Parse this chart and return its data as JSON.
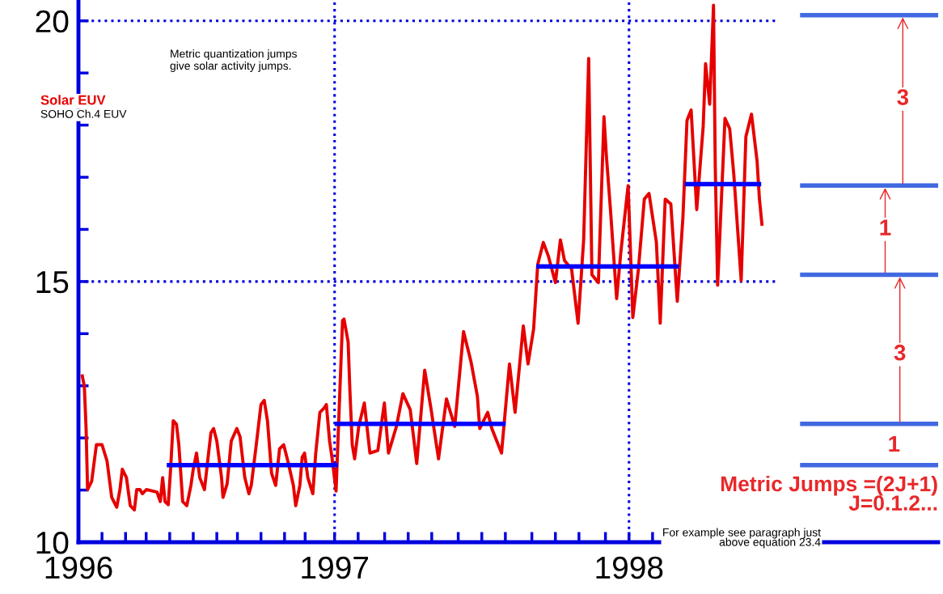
{
  "chart_data": {
    "type": "line",
    "ylabel": null,
    "series": [
      {
        "name": "Solar EUV",
        "color": "#e60000",
        "x": [
          1996.142,
          1996.15,
          1996.156,
          1996.161,
          1996.175,
          1996.191,
          1996.21,
          1996.227,
          1996.243,
          1996.26,
          1996.271,
          1996.279,
          1996.293,
          1996.306,
          1996.32,
          1996.328,
          1996.339,
          1996.347,
          1996.361,
          1996.383,
          1996.397,
          1996.408,
          1996.416,
          1996.424,
          1996.435,
          1996.443,
          1996.452,
          1996.463,
          1996.471,
          1996.484,
          1996.498,
          1996.512,
          1996.52,
          1996.531,
          1996.542,
          1996.558,
          1996.569,
          1996.58,
          1996.589,
          1996.6,
          1996.616,
          1996.621,
          1996.635,
          1996.649,
          1996.668,
          1996.679,
          1996.695,
          1996.709,
          1996.717,
          1996.734,
          1996.75,
          1996.761,
          1996.772,
          1996.786,
          1996.8,
          1996.813,
          1996.827,
          1996.841,
          1996.86,
          1996.868,
          1996.882,
          1996.89,
          1996.898,
          1996.909,
          1996.926,
          1996.936,
          1996.95,
          1996.964,
          1996.972,
          1996.983,
          1996.991,
          1997.005,
          1997.027,
          1997.032,
          1997.046,
          1997.052,
          1997.06,
          1997.068,
          1997.082,
          1997.101,
          1997.12,
          1997.147,
          1997.169,
          1997.183,
          1997.21,
          1997.232,
          1997.257,
          1997.279,
          1997.306,
          1997.328,
          1997.353,
          1997.38,
          1997.408,
          1997.438,
          1997.463,
          1997.485,
          1997.493,
          1997.52,
          1997.534,
          1997.567,
          1997.594,
          1997.613,
          1997.641,
          1997.657,
          1997.676,
          1997.69,
          1997.709,
          1997.726,
          1997.75,
          1997.767,
          1997.781,
          1997.805,
          1997.827,
          1997.846,
          1997.863,
          1997.874,
          1997.896,
          1997.915,
          1997.923,
          1997.937,
          1997.958,
          1997.972,
          1997.997,
          1998.013,
          1998.032,
          1998.052,
          1998.068,
          1998.093,
          1998.106,
          1998.123,
          1998.142,
          1998.164,
          1998.183,
          1998.197,
          1998.211,
          1998.23,
          1998.252,
          1998.26,
          1998.274,
          1998.287,
          1998.293,
          1998.301,
          1998.326,
          1998.342,
          1998.356,
          1998.381,
          1998.397,
          1998.416,
          1998.435,
          1998.443,
          1998.452
        ],
        "values": [
          13.22,
          12.99,
          12.18,
          11.01,
          11.17,
          11.87,
          11.87,
          11.56,
          10.86,
          10.67,
          11.01,
          11.4,
          11.24,
          10.7,
          10.62,
          11.01,
          11.01,
          10.93,
          11.01,
          10.98,
          10.96,
          10.78,
          11.24,
          10.78,
          10.72,
          11.4,
          12.33,
          12.26,
          11.87,
          10.78,
          10.7,
          11.09,
          11.4,
          11.71,
          11.24,
          11.01,
          11.56,
          12.1,
          12.18,
          11.94,
          11.24,
          10.86,
          11.12,
          11.94,
          12.18,
          12.02,
          11.24,
          10.93,
          11.09,
          11.87,
          12.64,
          12.72,
          12.33,
          11.32,
          11.09,
          11.79,
          11.87,
          11.56,
          11.09,
          10.7,
          11.09,
          11.63,
          11.71,
          11.24,
          10.93,
          11.71,
          12.49,
          12.57,
          12.64,
          11.94,
          11.63,
          10.98,
          14.25,
          14.28,
          13.84,
          12.91,
          11.87,
          11.6,
          12.22,
          12.67,
          11.71,
          11.76,
          12.67,
          11.71,
          12.22,
          12.85,
          12.54,
          11.51,
          13.3,
          12.54,
          11.6,
          12.75,
          12.22,
          14.04,
          13.47,
          12.8,
          12.18,
          12.49,
          12.18,
          11.71,
          13.42,
          12.49,
          14.15,
          13.42,
          14.09,
          15.33,
          15.75,
          15.49,
          14.98,
          15.8,
          15.4,
          15.24,
          14.2,
          15.8,
          19.28,
          15.13,
          14.98,
          18.16,
          17.42,
          16.38,
          14.67,
          15.55,
          16.84,
          14.31,
          15.24,
          16.58,
          16.69,
          15.75,
          14.2,
          16.58,
          16.49,
          14.62,
          16.22,
          18.09,
          18.29,
          16.38,
          17.98,
          19.18,
          18.4,
          20.3,
          17.2,
          14.93,
          18.13,
          17.93,
          17.05,
          15.02,
          17.78,
          18.21,
          17.31,
          16.58,
          16.07
        ]
      },
      {
        "color": "#0000ff",
        "x": [
          1996.43,
          1997.011,
          null,
          1997.0,
          1997.581,
          null,
          1997.685,
          1998.17,
          null,
          1998.189,
          1998.449
        ],
        "values": [
          11.48,
          11.48,
          null,
          12.27,
          12.27,
          null,
          15.29,
          15.29,
          null,
          16.87,
          16.87
        ]
      },
      {
        "color": "#4169e1",
        "x": [
          1998.581,
          1999.05
        ],
        "values": [
          20.11,
          20.11
        ]
      },
      {
        "color": "#4169e1",
        "x": [
          1998.581,
          1999.05
        ],
        "values": [
          16.84,
          16.84
        ]
      },
      {
        "color": "#4169e1",
        "x": [
          1998.581,
          1999.05
        ],
        "values": [
          15.13,
          15.13
        ]
      },
      {
        "color": "#4169e1",
        "x": [
          1998.581,
          1999.05
        ],
        "values": [
          12.27,
          12.27
        ]
      },
      {
        "color": "#4169e1",
        "x": [
          1998.581,
          1999.05
        ],
        "values": [
          11.48,
          11.48
        ]
      }
    ],
    "xlim": [
      1996.13,
      1999.05
    ],
    "ylim": [
      10,
      20.4
    ],
    "xticks": [
      {
        "value": 1996.13,
        "label": "1996"
      },
      {
        "value": 1996.21,
        "label": null
      },
      {
        "value": 1996.29,
        "label": null
      },
      {
        "value": 1996.36,
        "label": null
      },
      {
        "value": 1996.44,
        "label": null
      },
      {
        "value": 1996.52,
        "label": null
      },
      {
        "value": 1996.6,
        "label": null
      },
      {
        "value": 1996.67,
        "label": null
      },
      {
        "value": 1996.75,
        "label": null
      },
      {
        "value": 1996.83,
        "label": null
      },
      {
        "value": 1996.9,
        "label": null
      },
      {
        "value": 1997,
        "label": "1997"
      },
      {
        "value": 1997.08,
        "label": null
      },
      {
        "value": 1997.17,
        "label": null
      },
      {
        "value": 1997.25,
        "label": null
      },
      {
        "value": 1997.33,
        "label": null
      },
      {
        "value": 1997.42,
        "label": null
      },
      {
        "value": 1997.5,
        "label": null
      },
      {
        "value": 1997.58,
        "label": null
      },
      {
        "value": 1997.67,
        "label": null
      },
      {
        "value": 1997.75,
        "label": null
      },
      {
        "value": 1997.83,
        "label": null
      },
      {
        "value": 1997.92,
        "label": null
      },
      {
        "value": 1998,
        "label": "1998"
      },
      {
        "value": 1998.08,
        "label": null
      },
      {
        "value": 1998.17,
        "label": null
      },
      {
        "value": 1998.25,
        "label": null
      },
      {
        "value": 1998.33,
        "label": null
      },
      {
        "value": 1998.42,
        "label": null
      },
      {
        "value": 1998.5,
        "label": null
      }
    ],
    "yticks": [
      10,
      {
        "value": 11,
        "label": null
      },
      {
        "value": 12,
        "label": null
      },
      {
        "value": 13,
        "label": null
      },
      {
        "value": 14,
        "label": null
      },
      15,
      {
        "value": 16,
        "label": null
      },
      {
        "value": 17,
        "label": null
      },
      {
        "value": 18,
        "label": null
      },
      {
        "value": 19,
        "label": null
      },
      20
    ],
    "ref_lines": [
      {
        "axis": "x",
        "value": 1997,
        "color": "#0000dd",
        "line_style": "dotted"
      },
      {
        "axis": "x",
        "value": 1998,
        "color": "#0000dd",
        "line_style": "dotted"
      },
      {
        "axis": "y",
        "value": 15,
        "color": "#0000dd",
        "line_style": "dotted"
      },
      {
        "axis": "y",
        "value": 20,
        "color": "#0000dd",
        "line_style": "dotted"
      }
    ],
    "annotations": [
      "Metric quantization jumps\ngive solar activity jumps.",
      "SOHO Ch.4 EUV",
      "Metric Jumps =(2J+1)\nJ=0.1.2...",
      "For example see paragraph just\nabove equation 23.4",
      {
        "text": "3",
        "x": 1998.93,
        "y": 18.5
      },
      {
        "text": "1",
        "x": 1998.87,
        "y": 16.0
      },
      {
        "text": "3",
        "x": 1998.92,
        "y": 13.6
      },
      {
        "text": "1",
        "x": 1998.9,
        "y": 11.85
      }
    ],
    "legend": false,
    "grid": false
  }
}
